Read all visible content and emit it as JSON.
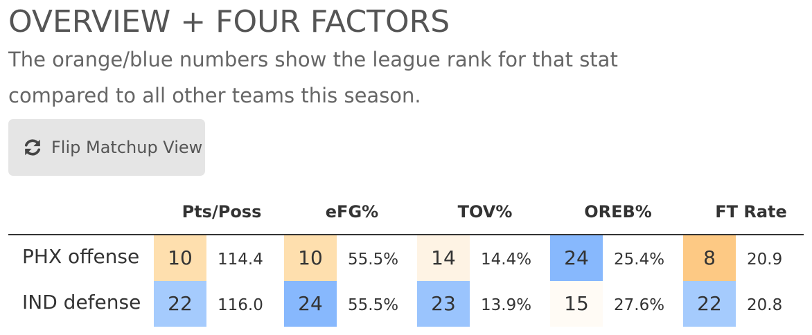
{
  "header": {
    "title": "OVERVIEW + FOUR FACTORS",
    "subtitle_line1": "The orange/blue numbers show the league rank for that stat",
    "subtitle_line2": "compared to all other teams this season."
  },
  "flip_button": {
    "label": "Flip Matchup View",
    "icon": "refresh-icon"
  },
  "stats": {
    "columns": [
      "Pts/Poss",
      "eFG%",
      "TOV%",
      "OREB%",
      "FT Rate"
    ],
    "rows": [
      {
        "label": "PHX offense",
        "cells": [
          {
            "rank": "10",
            "value": "114.4",
            "color": "#fedfae"
          },
          {
            "rank": "10",
            "value": "55.5%",
            "color": "#fedfae"
          },
          {
            "rank": "14",
            "value": "14.4%",
            "color": "#fef3e4"
          },
          {
            "rank": "24",
            "value": "25.4%",
            "color": "#87b8fd"
          },
          {
            "rank": "8",
            "value": "20.9",
            "color": "#fdc984"
          }
        ]
      },
      {
        "label": "IND defense",
        "cells": [
          {
            "rank": "22",
            "value": "116.0",
            "color": "#a5cbfd"
          },
          {
            "rank": "24",
            "value": "55.5%",
            "color": "#87b8fd"
          },
          {
            "rank": "23",
            "value": "13.9%",
            "color": "#9ac4fd"
          },
          {
            "rank": "15",
            "value": "27.6%",
            "color": "#fffbf5"
          },
          {
            "rank": "22",
            "value": "20.8",
            "color": "#a5cbfd"
          }
        ]
      }
    ]
  }
}
